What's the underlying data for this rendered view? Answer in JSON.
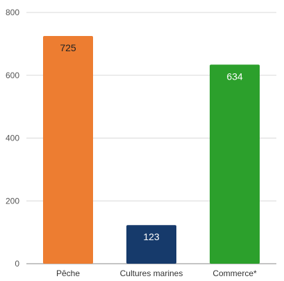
{
  "chart_data": {
    "type": "bar",
    "title": "",
    "xlabel": "",
    "ylabel": "",
    "categories": [
      "Pêche",
      "Cultures marines",
      "Commerce*"
    ],
    "values": [
      725,
      123,
      634
    ],
    "bar_colors": [
      "#ED7D31",
      "#163A6B",
      "#2CA02C"
    ],
    "data_label_colors": [
      "#222222",
      "#ffffff",
      "#ffffff"
    ],
    "ylim": [
      0,
      800
    ],
    "yticks": [
      0,
      200,
      400,
      600,
      800
    ],
    "ytick_labels": [
      "0",
      "200",
      "400",
      "600",
      "800"
    ],
    "grid": true,
    "gridline_color": "#d9d9d9",
    "legend": false
  }
}
